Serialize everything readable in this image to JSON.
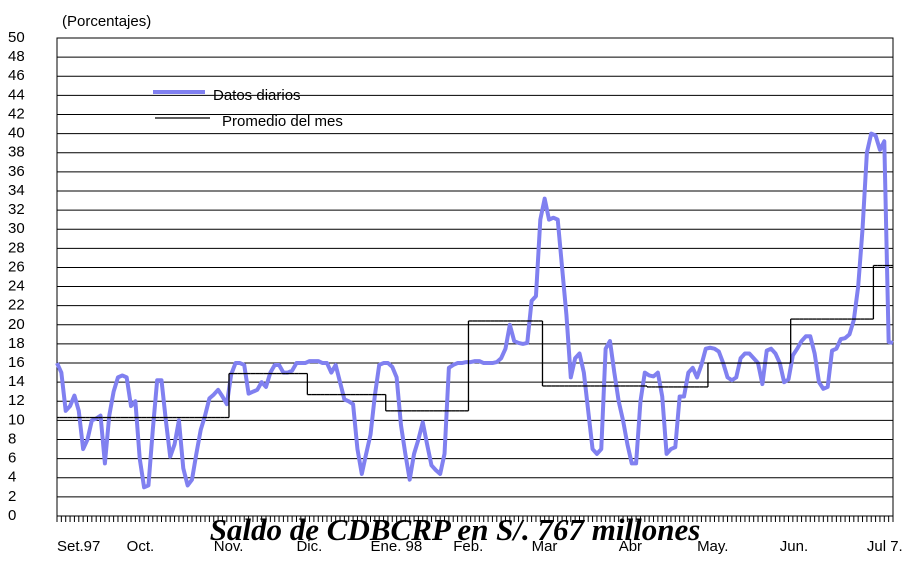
{
  "chart_data": {
    "type": "line",
    "subtitle": "(Porcentajes)",
    "annotation": "Saldo de CDBCRP en S/. 767 millones",
    "ylim": [
      0,
      50
    ],
    "yticks": [
      0,
      2,
      4,
      6,
      8,
      10,
      12,
      14,
      16,
      18,
      20,
      22,
      24,
      26,
      28,
      30,
      32,
      34,
      36,
      38,
      40,
      42,
      44,
      46,
      48,
      50
    ],
    "grid": true,
    "categories": [
      "Set.97",
      null,
      null,
      null,
      null,
      null,
      null,
      null,
      null,
      null,
      null,
      null,
      null,
      null,
      null,
      null,
      "Oct.",
      null,
      null,
      null,
      null,
      null,
      null,
      null,
      null,
      null,
      null,
      null,
      null,
      null,
      null,
      null,
      null,
      null,
      null,
      null,
      "Nov.",
      null,
      null,
      null,
      null,
      null,
      null,
      null,
      null,
      null,
      null,
      null,
      null,
      null,
      null,
      null,
      null,
      null,
      null,
      "Dic.",
      null,
      null,
      null,
      null,
      null,
      null,
      null,
      null,
      null,
      null,
      null,
      null,
      null,
      null,
      null,
      null,
      "Ene. 98",
      null,
      null,
      null,
      null,
      null,
      null,
      null,
      null,
      null,
      null,
      null,
      null,
      null,
      null,
      null,
      null,
      null,
      null,
      "Feb.",
      null,
      null,
      null,
      null,
      null,
      null,
      null,
      null,
      null,
      null,
      null,
      null,
      null,
      null,
      null,
      null,
      null,
      "Mar",
      null,
      null,
      null,
      null,
      null,
      null,
      null,
      null,
      null,
      null,
      null,
      null,
      null,
      null,
      null,
      null,
      null,
      null,
      null,
      "Abr",
      null,
      null,
      null,
      null,
      null,
      null,
      null,
      null,
      null,
      null,
      null,
      null,
      null,
      null,
      null,
      null,
      null,
      "May.",
      null,
      null,
      null,
      null,
      null,
      null,
      null,
      null,
      null,
      null,
      null,
      null,
      null,
      null,
      null,
      null,
      null,
      null,
      "Jun.",
      null,
      null,
      null,
      null,
      null,
      null,
      null,
      null,
      null,
      null,
      null,
      null,
      null,
      null,
      null,
      null,
      null,
      null,
      null,
      "Jul 7.",
      null,
      null,
      null,
      null,
      null,
      null
    ],
    "series": [
      {
        "name": "Datos diarios",
        "color": "#8080f0",
        "style": "daily",
        "values": [
          16,
          15,
          11,
          11.5,
          12.6,
          11,
          7,
          8,
          10,
          10.2,
          10.5,
          5.5,
          10.5,
          13,
          14.5,
          14.7,
          14.5,
          11.5,
          12,
          6,
          3,
          3.2,
          9,
          14.2,
          14.2,
          10,
          6.2,
          7.5,
          10,
          5,
          3.2,
          3.8,
          6.5,
          9,
          10.5,
          12.3,
          12.7,
          13.2,
          12.5,
          11.7,
          14.8,
          16,
          16,
          15.8,
          12.8,
          13,
          13.2,
          14,
          13.5,
          15,
          15.8,
          15.8,
          15,
          15,
          15.2,
          16,
          16,
          16,
          16.2,
          16.2,
          16.2,
          16,
          16,
          15,
          15.8,
          14,
          12.2,
          12,
          11.7,
          7,
          4.4,
          6.5,
          8.5,
          12.6,
          15.8,
          16,
          16,
          15.6,
          14.5,
          9.5,
          6.5,
          3.8,
          6.5,
          8,
          9.8,
          7.5,
          5.3,
          4.8,
          4.4,
          6.5,
          15.5,
          15.8,
          16,
          16,
          16.1,
          16.1,
          16.2,
          16.2,
          16,
          16,
          16,
          16.1,
          16.5,
          17.5,
          20,
          18.3,
          18.1,
          18,
          18.1,
          22.5,
          23,
          31,
          33.2,
          31,
          31.2,
          31,
          26,
          21,
          14.5,
          16.5,
          17,
          15,
          11,
          7,
          6.5,
          7,
          17.5,
          18.3,
          15,
          12,
          10,
          7.5,
          5.5,
          5.5,
          12,
          15,
          14.7,
          14.6,
          15,
          12.5,
          6.5,
          7,
          7.2,
          12.5,
          12.5,
          15,
          15.5,
          14.5,
          15.8,
          17.5,
          17.6,
          17.5,
          17.2,
          16,
          14.5,
          14.2,
          14.5,
          16.5,
          17,
          17,
          16.5,
          16,
          13.8,
          17.3,
          17.5,
          17,
          16,
          14,
          14.3,
          16.8,
          17.5,
          18.3,
          18.8,
          18.8,
          17,
          14,
          13.3,
          13.5,
          17.3,
          17.5,
          18.5,
          18.6,
          19,
          20.5,
          24,
          30,
          38,
          40,
          39.8,
          38.3,
          39.2,
          18.2,
          18.1
        ]
      },
      {
        "name": "Promedio del mes",
        "color": "#000000",
        "style": "step",
        "values": [
          10.3,
          10.3,
          10.3,
          10.3,
          10.3,
          10.3,
          10.3,
          10.3,
          10.3,
          10.3,
          10.3,
          10.3,
          10.3,
          10.3,
          10.3,
          10.3,
          10.3,
          10.3,
          10.3,
          10.3,
          10.3,
          10.3,
          10.3,
          10.3,
          10.3,
          10.3,
          10.3,
          10.3,
          10.3,
          10.3,
          10.3,
          10.3,
          10.3,
          10.3,
          10.3,
          10.3,
          10.3,
          10.3,
          10.3,
          10.3,
          14.9,
          14.9,
          14.9,
          14.9,
          14.9,
          14.9,
          14.9,
          14.9,
          14.9,
          14.9,
          14.9,
          14.9,
          14.9,
          14.9,
          14.9,
          14.9,
          14.9,
          14.9,
          12.7,
          12.7,
          12.7,
          12.7,
          12.7,
          12.7,
          12.7,
          12.7,
          12.7,
          12.7,
          12.7,
          12.7,
          12.7,
          12.7,
          12.7,
          12.7,
          12.7,
          12.7,
          11,
          11,
          11,
          11,
          11,
          11,
          11,
          11,
          11,
          11,
          11,
          11,
          11,
          11,
          11,
          11,
          11,
          11,
          11,
          20.4,
          20.4,
          20.4,
          20.4,
          20.4,
          20.4,
          20.4,
          20.4,
          20.4,
          20.4,
          20.4,
          20.4,
          20.4,
          20.4,
          20.4,
          20.4,
          20.4,
          13.6,
          13.6,
          13.6,
          13.6,
          13.6,
          13.6,
          13.6,
          13.6,
          13.6,
          13.6,
          13.6,
          13.6,
          13.6,
          13.6,
          13.6,
          13.6,
          13.6,
          13.6,
          13.6,
          13.6,
          13.6,
          13.6,
          13.6,
          13.6,
          13.5,
          13.5,
          13.5,
          13.5,
          13.5,
          13.5,
          13.5,
          13.5,
          13.5,
          13.5,
          13.5,
          13.5,
          13.5,
          13.5,
          16,
          16,
          16,
          16,
          16,
          16,
          16,
          16,
          16,
          16,
          16,
          16,
          16,
          16,
          16,
          16,
          16,
          16,
          16,
          20.6,
          20.6,
          20.6,
          20.6,
          20.6,
          20.6,
          20.6,
          20.6,
          20.6,
          20.6,
          20.6,
          20.6,
          20.6,
          20.6,
          20.6,
          20.6,
          20.6,
          20.6,
          20.6,
          26.2,
          26.2,
          26.2,
          26.2,
          26.2
        ]
      }
    ]
  }
}
